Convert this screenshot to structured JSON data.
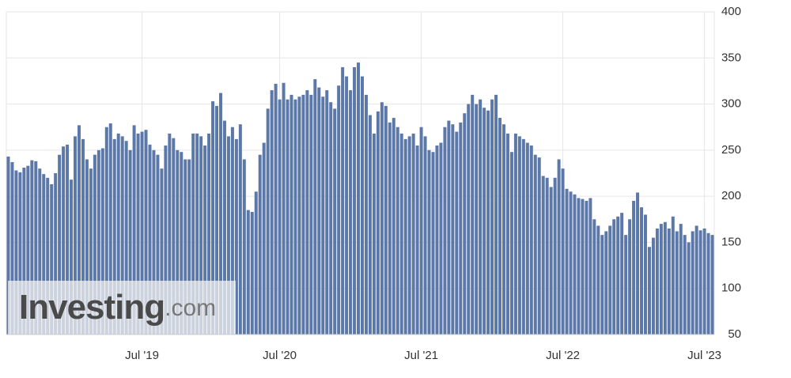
{
  "chart_data": {
    "type": "bar",
    "categories": [
      null,
      null,
      null,
      null,
      null,
      null,
      null,
      null,
      null,
      null,
      null,
      null,
      null,
      null,
      null,
      null,
      null,
      null,
      null,
      null,
      null,
      null,
      null,
      null,
      null,
      null,
      null,
      null,
      null,
      null,
      null,
      null,
      null,
      null,
      "Jul '19",
      null,
      null,
      null,
      null,
      null,
      null,
      null,
      null,
      null,
      null,
      null,
      null,
      null,
      null,
      null,
      null,
      null,
      null,
      null,
      null,
      null,
      null,
      null,
      null,
      null,
      null,
      null,
      null,
      null,
      null,
      null,
      null,
      null,
      null,
      "Jul '20",
      null,
      null,
      null,
      null,
      null,
      null,
      null,
      null,
      null,
      null,
      null,
      null,
      null,
      null,
      null,
      null,
      null,
      null,
      null,
      null,
      null,
      null,
      null,
      null,
      null,
      null,
      null,
      null,
      null,
      null,
      null,
      null,
      null,
      null,
      null,
      "Jul '21",
      null,
      null,
      null,
      null,
      null,
      null,
      null,
      null,
      null,
      null,
      null,
      null,
      null,
      null,
      null,
      null,
      null,
      null,
      null,
      null,
      null,
      null,
      null,
      null,
      null,
      null,
      null,
      null,
      null,
      null,
      null,
      null,
      null,
      null,
      null,
      "Jul '22",
      null,
      null,
      null,
      null,
      null,
      null,
      null,
      null,
      null,
      null,
      null,
      null,
      null,
      null,
      null,
      null,
      null,
      null,
      null,
      null,
      null,
      null,
      null,
      null,
      null,
      null,
      null,
      null,
      null,
      null,
      null,
      null,
      null,
      null,
      null,
      "Jul '23",
      null,
      null
    ],
    "values": [
      243,
      237,
      228,
      226,
      231,
      233,
      239,
      238,
      230,
      224,
      220,
      213,
      225,
      245,
      254,
      256,
      218,
      265,
      277,
      262,
      240,
      230,
      245,
      250,
      252,
      275,
      279,
      262,
      268,
      265,
      260,
      250,
      277,
      268,
      270,
      272,
      256,
      250,
      245,
      230,
      255,
      268,
      263,
      250,
      248,
      240,
      240,
      268,
      268,
      265,
      255,
      268,
      303,
      298,
      312,
      282,
      265,
      275,
      262,
      278,
      240,
      185,
      183,
      205,
      245,
      258,
      295,
      315,
      322,
      305,
      323,
      305,
      310,
      305,
      308,
      310,
      315,
      310,
      327,
      318,
      308,
      315,
      302,
      295,
      320,
      340,
      330,
      315,
      340,
      345,
      330,
      310,
      288,
      268,
      292,
      302,
      298,
      280,
      285,
      275,
      268,
      262,
      265,
      268,
      255,
      275,
      265,
      250,
      248,
      255,
      258,
      275,
      282,
      278,
      270,
      280,
      290,
      300,
      310,
      300,
      305,
      296,
      293,
      305,
      310,
      285,
      278,
      268,
      248,
      268,
      265,
      262,
      258,
      255,
      245,
      242,
      222,
      220,
      210,
      220,
      240,
      230,
      208,
      205,
      202,
      198,
      197,
      195,
      198,
      175,
      168,
      158,
      162,
      168,
      175,
      178,
      182,
      158,
      175,
      195,
      204,
      188,
      180,
      145,
      155,
      165,
      170,
      172,
      165,
      178,
      162,
      170,
      158,
      150,
      162,
      168,
      163,
      165,
      160,
      158
    ],
    "color": "#5b78a8",
    "ylim": [
      50,
      400
    ],
    "yticks": [
      50,
      100,
      150,
      200,
      250,
      300,
      350,
      400
    ],
    "grid": true,
    "y_axis_side": "right",
    "watermark": {
      "brand": "Investing",
      "suffix": ".com"
    }
  }
}
